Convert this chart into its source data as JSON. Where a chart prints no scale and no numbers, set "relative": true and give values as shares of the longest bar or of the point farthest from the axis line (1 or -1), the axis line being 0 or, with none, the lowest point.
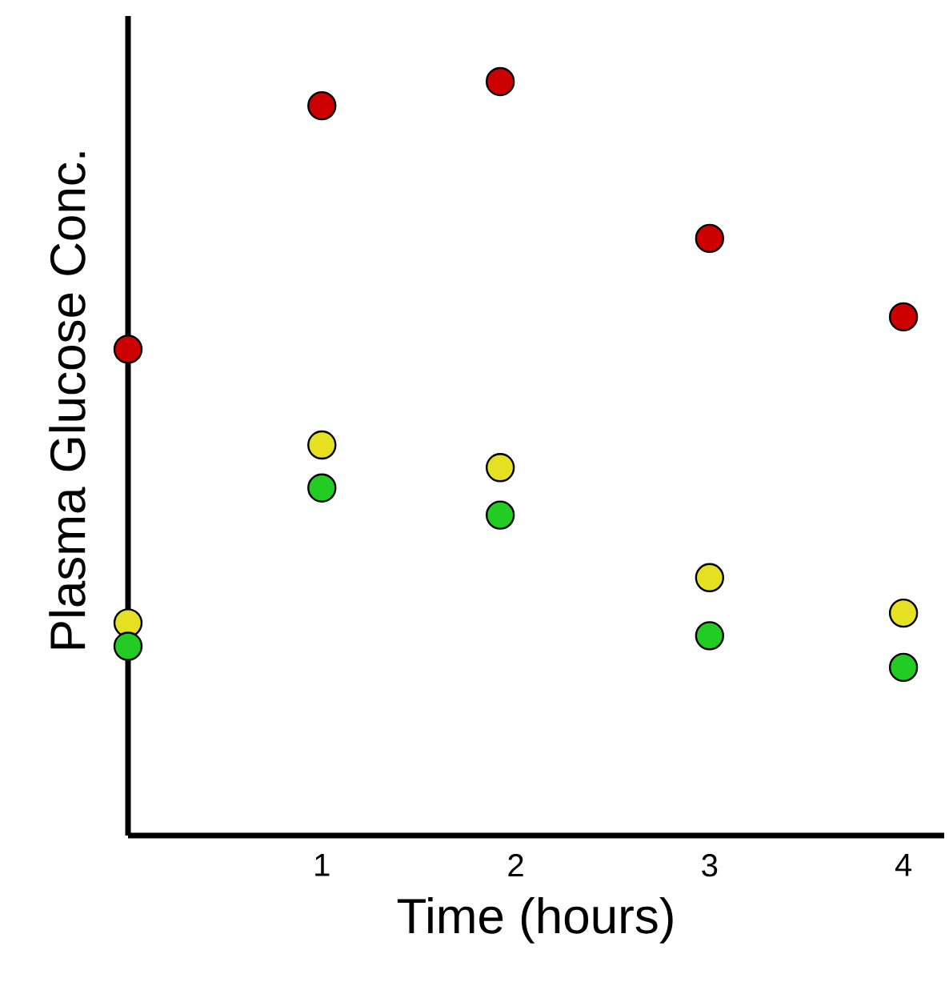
{
  "chart_data": {
    "type": "scatter",
    "xlabel": "Time (hours)",
    "ylabel": "Plasma Glucose Conc.",
    "relative": true,
    "xlim": [
      0,
      4.21
    ],
    "xticks": [
      1,
      2,
      3,
      4
    ],
    "series": [
      {
        "color": "#cc0000",
        "x": [
          0,
          1,
          1.92,
          3,
          4
        ],
        "values": [
          0.645,
          0.968,
          1.0,
          0.792,
          0.688
        ]
      },
      {
        "color": "#e6e022",
        "x": [
          0,
          1,
          1.92,
          3,
          4
        ],
        "values": [
          0.282,
          0.518,
          0.488,
          0.342,
          0.295
        ]
      },
      {
        "color": "#22cc22",
        "x": [
          0,
          1,
          1.92,
          3,
          4
        ],
        "values": [
          0.251,
          0.461,
          0.425,
          0.265,
          0.223
        ]
      }
    ]
  }
}
